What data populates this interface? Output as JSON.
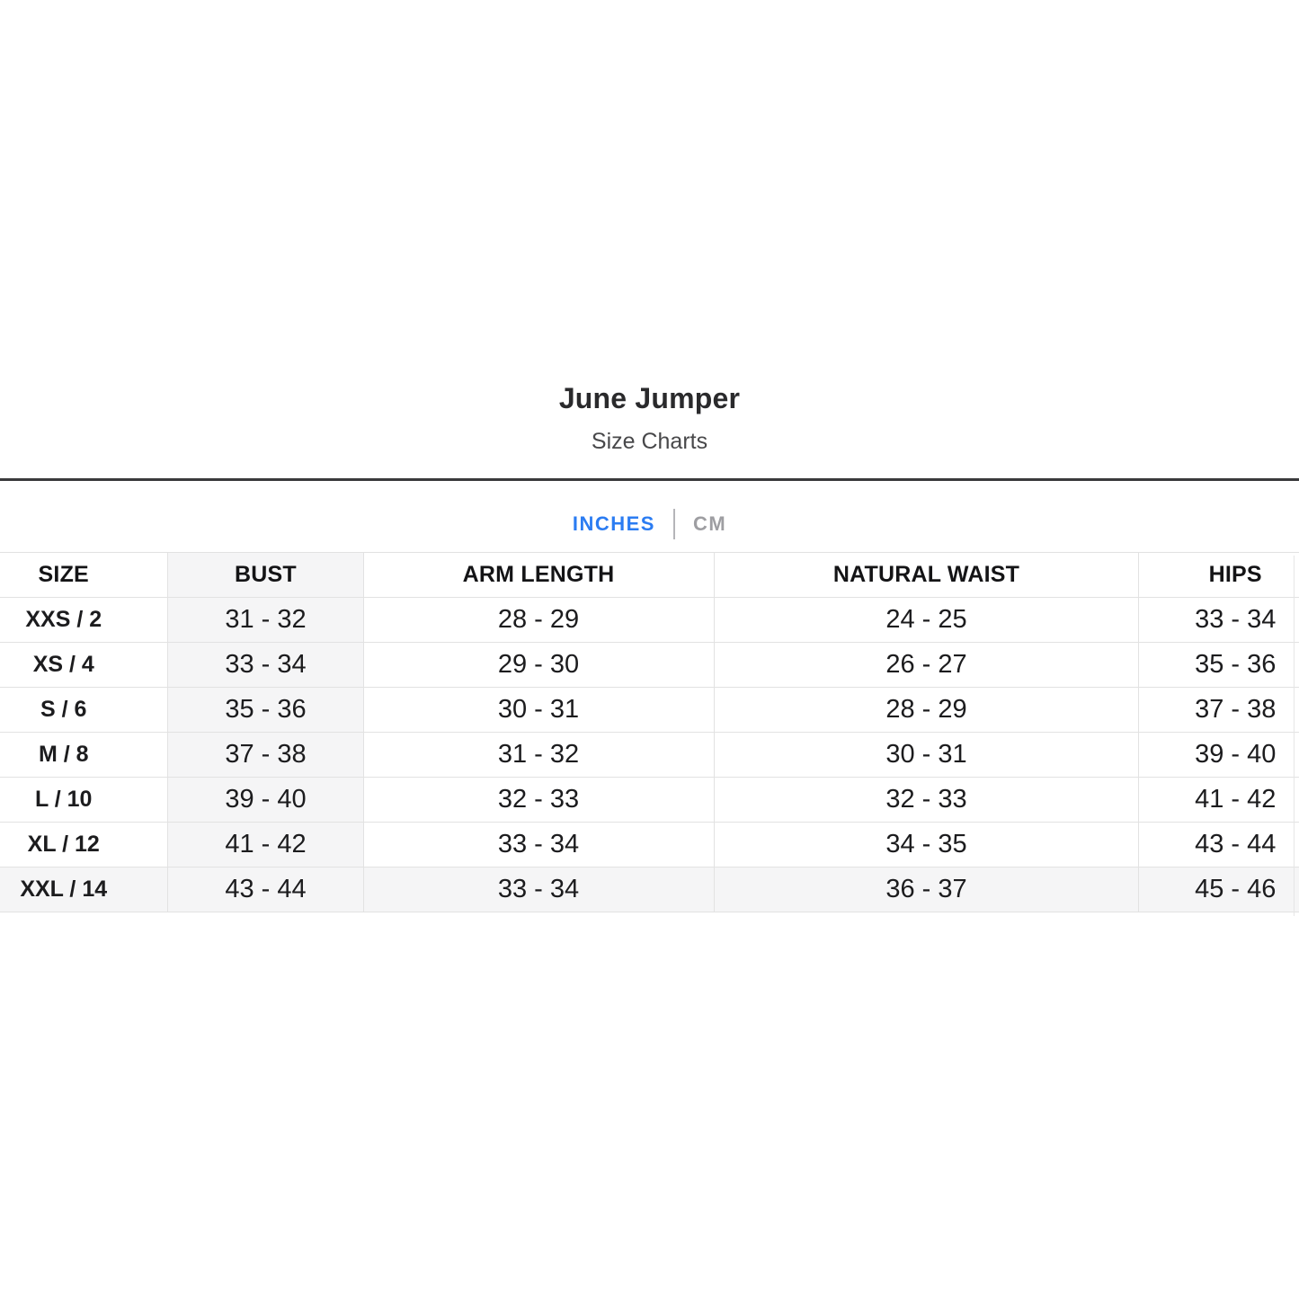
{
  "page": {
    "title": "June Jumper",
    "subtitle": "Size Charts"
  },
  "unit_tabs": {
    "active": "INCHES",
    "inches_label": "INCHES",
    "cm_label": "CM"
  },
  "colors": {
    "active_tab": "#2b7cf2",
    "inactive_tab": "#9e9ea2",
    "row_highlight": "#f5f5f6",
    "dark_rule": "#39393b",
    "table_border": "#e2e2e2"
  },
  "size_table": {
    "columns": {
      "size": "SIZE",
      "bust": "BUST",
      "arm_length": "ARM LENGTH",
      "natural_waist": "NATURAL WAIST",
      "hips": "HIPS"
    },
    "highlight_column": "BUST",
    "highlight_row": "XXL / 14",
    "rows": [
      {
        "size": "XXS / 2",
        "bust": "31 - 32",
        "arm_length": "28 - 29",
        "natural_waist": "24 - 25",
        "hips": "33 - 34"
      },
      {
        "size": "XS / 4",
        "bust": "33 - 34",
        "arm_length": "29 - 30",
        "natural_waist": "26 - 27",
        "hips": "35 - 36"
      },
      {
        "size": "S / 6",
        "bust": "35 - 36",
        "arm_length": "30 - 31",
        "natural_waist": "28 - 29",
        "hips": "37 - 38"
      },
      {
        "size": "M / 8",
        "bust": "37 - 38",
        "arm_length": "31 - 32",
        "natural_waist": "30 - 31",
        "hips": "39 - 40"
      },
      {
        "size": "L / 10",
        "bust": "39 - 40",
        "arm_length": "32 - 33",
        "natural_waist": "32 - 33",
        "hips": "41 - 42"
      },
      {
        "size": "XL / 12",
        "bust": "41 - 42",
        "arm_length": "33 - 34",
        "natural_waist": "34 - 35",
        "hips": "43 - 44"
      },
      {
        "size": "XXL / 14",
        "bust": "43 - 44",
        "arm_length": "33 - 34",
        "natural_waist": "36 - 37",
        "hips": "45 - 46"
      }
    ]
  }
}
